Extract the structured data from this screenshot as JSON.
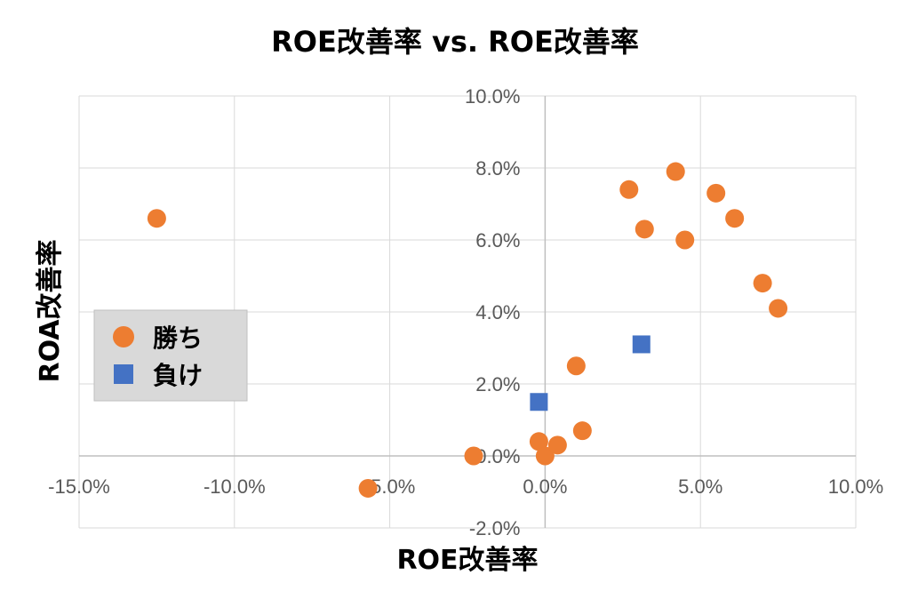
{
  "chart_data": {
    "type": "scatter",
    "title": "ROE改善率 vs. ROE改善率",
    "xlabel": "ROE改善率",
    "ylabel": "ROA改善率",
    "xlim": [
      -0.15,
      0.1
    ],
    "ylim": [
      -0.02,
      0.1
    ],
    "x_ticks": [
      -0.15,
      -0.1,
      -0.05,
      0.0,
      0.05,
      0.1
    ],
    "x_tick_labels": [
      "-15.0%",
      "-10.0%",
      "-5.0%",
      "0.0%",
      "5.0%",
      "10.0%"
    ],
    "y_ticks": [
      -0.02,
      0.0,
      0.02,
      0.04,
      0.06,
      0.08,
      0.1
    ],
    "y_tick_labels": [
      "-2.0%",
      "0.0%",
      "2.0%",
      "4.0%",
      "6.0%",
      "8.0%",
      "10.0%"
    ],
    "grid": true,
    "legend_position": "left",
    "series": [
      {
        "name": "勝ち",
        "marker": "circle",
        "color": "#ED7D31",
        "points": [
          [
            -0.125,
            0.066
          ],
          [
            -0.057,
            -0.009
          ],
          [
            -0.023,
            0.0
          ],
          [
            -0.002,
            0.004
          ],
          [
            0.0,
            0.0
          ],
          [
            0.004,
            0.003
          ],
          [
            0.012,
            0.007
          ],
          [
            0.01,
            0.025
          ],
          [
            0.027,
            0.074
          ],
          [
            0.032,
            0.063
          ],
          [
            0.042,
            0.079
          ],
          [
            0.045,
            0.06
          ],
          [
            0.055,
            0.073
          ],
          [
            0.061,
            0.066
          ],
          [
            0.07,
            0.048
          ],
          [
            0.075,
            0.041
          ]
        ]
      },
      {
        "name": "負け",
        "marker": "square",
        "color": "#4472C4",
        "points": [
          [
            -0.002,
            0.015
          ],
          [
            0.031,
            0.031
          ]
        ]
      }
    ]
  }
}
